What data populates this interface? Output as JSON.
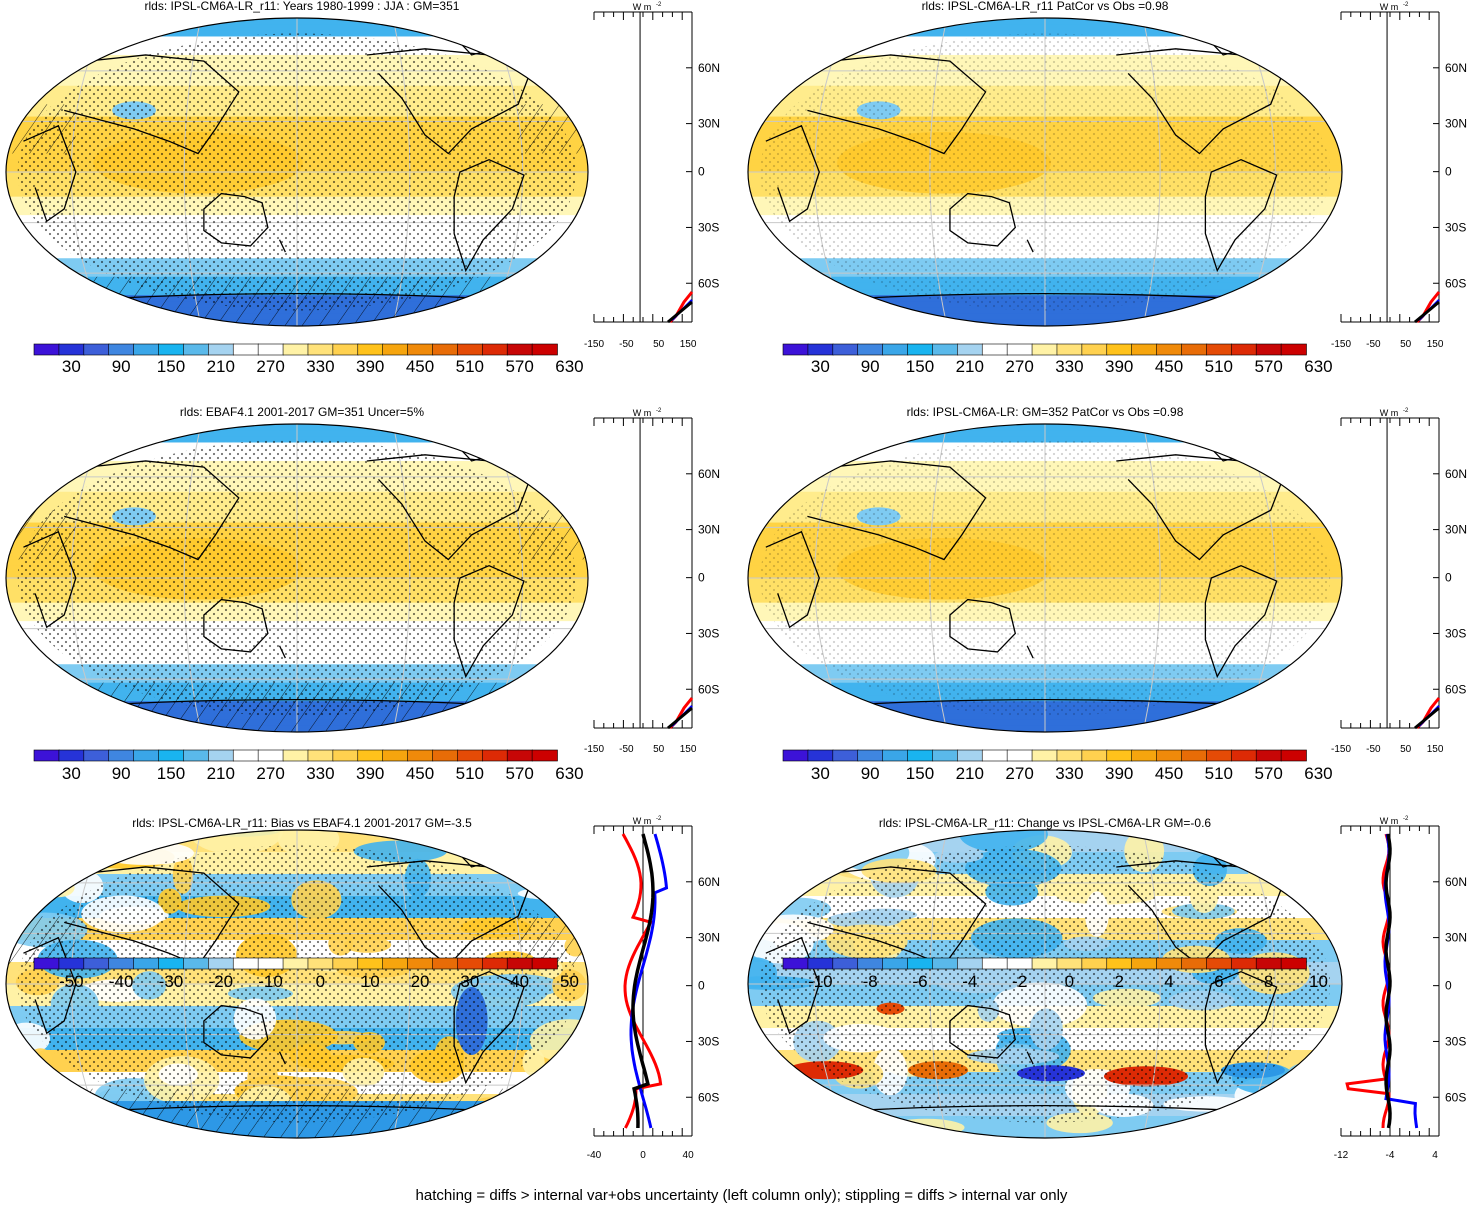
{
  "footer": "hatching = diffs > internal var+obs uncertainty (left column only); stippling = diffs > internal var only",
  "colors": {
    "scale13": [
      "#3c12d8",
      "#2633d8",
      "#3d5fd9",
      "#3f86e0",
      "#3aa6e8",
      "#19b4f0",
      "#5ab9ea",
      "#a5d3f0",
      "#ffffff",
      "#ffffff",
      "#fff2a6",
      "#ffe27a",
      "#ffd14f",
      "#ffc21b",
      "#f6a50e",
      "#f08a0a",
      "#e86c07",
      "#e54b06",
      "#dd2a05",
      "#c70606",
      "#cc0000"
    ],
    "land": "#000000",
    "obs_line": "#000000",
    "model_line": "#ff0000",
    "ref_line": "#0000ff"
  },
  "chart_data": [
    {
      "type": "heatmap",
      "title": "rlds: IPSL-CM6A-LR_r11: Years 1980-1999 : JJA : GM=351",
      "colorbar": {
        "labels": [
          "30",
          "90",
          "150",
          "210",
          "270",
          "330",
          "390",
          "450",
          "510",
          "570",
          "630"
        ]
      },
      "zonal": {
        "unit": "W m",
        "unit_sup": "-2",
        "xticks": [
          "-150",
          "-50",
          "50",
          "150"
        ],
        "lat_labels": [
          "60N",
          "30N",
          "0",
          "30S",
          "60S"
        ]
      }
    },
    {
      "type": "heatmap",
      "title": "rlds: IPSL-CM6A-LR_r11 PatCor vs Obs =0.98",
      "colorbar": {
        "labels": [
          "30",
          "90",
          "150",
          "210",
          "270",
          "330",
          "390",
          "450",
          "510",
          "570",
          "630"
        ]
      },
      "zonal": {
        "unit": "W m",
        "unit_sup": "-2",
        "xticks": [
          "-150",
          "-50",
          "50",
          "150"
        ],
        "lat_labels": [
          "60N",
          "30N",
          "0",
          "30S",
          "60S"
        ]
      }
    },
    {
      "type": "heatmap",
      "title": "rlds: EBAF4.1 2001-2017 GM=351 Uncer=5%",
      "colorbar": {
        "labels": [
          "30",
          "90",
          "150",
          "210",
          "270",
          "330",
          "390",
          "450",
          "510",
          "570",
          "630"
        ]
      },
      "zonal": {
        "unit": "W m",
        "unit_sup": "-2",
        "xticks": [
          "-150",
          "-50",
          "50",
          "150"
        ],
        "lat_labels": [
          "60N",
          "30N",
          "0",
          "30S",
          "60S"
        ]
      }
    },
    {
      "type": "heatmap",
      "title": "rlds: IPSL-CM6A-LR: GM=352 PatCor vs Obs =0.98",
      "colorbar": {
        "labels": [
          "30",
          "90",
          "150",
          "210",
          "270",
          "330",
          "390",
          "450",
          "510",
          "570",
          "630"
        ]
      },
      "zonal": {
        "unit": "W m",
        "unit_sup": "-2",
        "xticks": [
          "-150",
          "-50",
          "50",
          "150"
        ],
        "lat_labels": [
          "60N",
          "30N",
          "0",
          "30S",
          "60S"
        ]
      }
    },
    {
      "type": "heatmap",
      "title": "rlds: IPSL-CM6A-LR_r11: Bias vs EBAF4.1 2001-2017 GM=-3.5",
      "colorbar": {
        "labels": [
          "-50",
          "-40",
          "-30",
          "-20",
          "-10",
          "0",
          "10",
          "20",
          "30",
          "40",
          "50"
        ]
      },
      "zonal": {
        "unit": "W m",
        "unit_sup": "-2",
        "xticks": [
          "-40",
          "0",
          "40"
        ],
        "lat_labels": [
          "60N",
          "30N",
          "0",
          "30S",
          "60S"
        ]
      }
    },
    {
      "type": "heatmap",
      "title": "rlds: IPSL-CM6A-LR_r11: Change vs IPSL-CM6A-LR GM=-0.6",
      "colorbar": {
        "labels": [
          "-10",
          "-8",
          "-6",
          "-4",
          "-2",
          "0",
          "2",
          "4",
          "6",
          "8",
          "10"
        ]
      },
      "zonal": {
        "unit": "W m",
        "unit_sup": "-2",
        "xticks": [
          "-12",
          "-4",
          "4"
        ],
        "lat_labels": [
          "60N",
          "30N",
          "0",
          "30S",
          "60S"
        ]
      }
    }
  ]
}
